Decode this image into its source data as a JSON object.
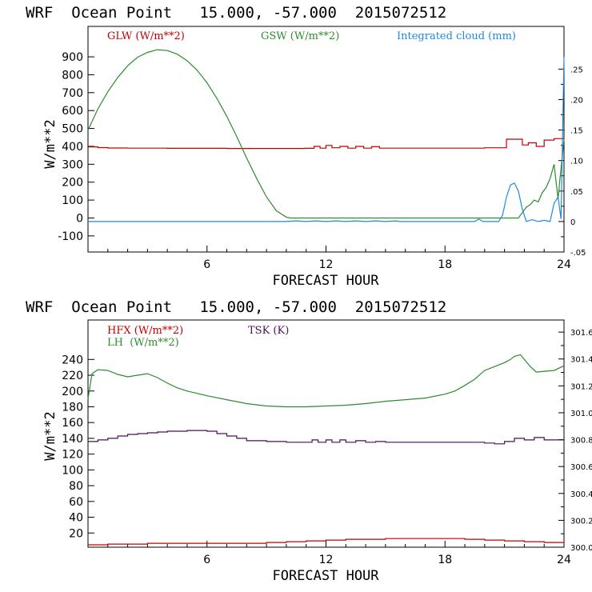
{
  "chart_data": [
    {
      "type": "line",
      "title": "WRF  Ocean Point   15.000, -57.000  2015072512",
      "xlabel": "FORECAST HOUR",
      "ylabel": "W/m**2",
      "xlim": [
        0,
        24
      ],
      "ylim": [
        -190,
        1070
      ],
      "xticks": [
        6,
        12,
        18,
        24
      ],
      "yticks": [
        -100,
        0,
        100,
        200,
        300,
        400,
        500,
        600,
        700,
        800,
        900
      ],
      "y2lim": [
        -0.05,
        0.32
      ],
      "y2ticks": [
        -0.05,
        0,
        0.05,
        0.1,
        0.15,
        0.2,
        0.25
      ],
      "y2ticklabels": [
        "-.05",
        "0",
        ".05",
        ".10",
        ".15",
        ".20",
        ".25"
      ],
      "series": [
        {
          "name": "GLW (W/m**2)",
          "color": "#c00000",
          "axis": "left",
          "step": true,
          "x": [
            0,
            0.5,
            1,
            2,
            3,
            4,
            5,
            6,
            7,
            8,
            9,
            10,
            10.9,
            11.4,
            11.7,
            12,
            12.3,
            12.7,
            13.1,
            13.5,
            13.9,
            14.3,
            14.7,
            15,
            16,
            17,
            18,
            19,
            20,
            21,
            21.1,
            21.6,
            21.9,
            22.2,
            22.6,
            23,
            23.5,
            24
          ],
          "y": [
            397,
            393,
            391,
            390,
            390,
            389,
            389,
            389,
            388,
            388,
            388,
            388,
            389,
            400,
            390,
            405,
            392,
            400,
            390,
            400,
            390,
            398,
            390,
            390,
            390,
            390,
            390,
            390,
            392,
            392,
            440,
            440,
            408,
            420,
            400,
            435,
            443,
            443
          ]
        },
        {
          "name": "GSW (W/m**2)",
          "color": "#2e8b2e",
          "axis": "left",
          "x": [
            0,
            0.5,
            1,
            1.5,
            2,
            2.5,
            3,
            3.5,
            4,
            4.5,
            5,
            5.5,
            6,
            6.5,
            7,
            7.5,
            8,
            8.5,
            9,
            9.5,
            10,
            10.2,
            10.5,
            11,
            12,
            14,
            16,
            18,
            20,
            21.7,
            21.9,
            22.1,
            22.3,
            22.5,
            22.7,
            22.9,
            23.1,
            23.3,
            23.5,
            23.7,
            23.8,
            24
          ],
          "y": [
            490,
            610,
            705,
            785,
            850,
            898,
            925,
            940,
            935,
            915,
            878,
            825,
            755,
            668,
            568,
            455,
            335,
            222,
            118,
            40,
            5,
            0,
            0,
            0,
            0,
            0,
            0,
            0,
            0,
            0,
            30,
            60,
            75,
            100,
            90,
            140,
            170,
            220,
            300,
            105,
            220,
            440
          ]
        },
        {
          "name": "Integrated cloud (mm)",
          "color": "#1f88e0",
          "axis": "right",
          "x": [
            0,
            10,
            10.5,
            11,
            11.5,
            12,
            12.5,
            13,
            13.5,
            14,
            14.5,
            15,
            15.5,
            15.8,
            16,
            19.5,
            19.7,
            19.9,
            20.1,
            20.5,
            20.7,
            20.9,
            21.1,
            21.3,
            21.5,
            21.7,
            21.9,
            22.1,
            22.4,
            22.7,
            23,
            23.3,
            23.5,
            23.7,
            23.85,
            24
          ],
          "y": [
            0,
            0,
            0.001,
            0,
            0.001,
            0,
            0.001,
            0,
            0.001,
            0,
            0.001,
            0,
            0.001,
            0,
            0,
            0,
            0.004,
            0.0,
            0.0,
            0.0,
            0.0,
            0.01,
            0.04,
            0.06,
            0.063,
            0.05,
            0.02,
            0.0,
            0.003,
            0.0,
            0.002,
            0.0,
            0.03,
            0.04,
            0.004,
            0.27
          ]
        }
      ],
      "legend": [
        "GLW (W/m**2)",
        "GSW (W/m**2)",
        "Integrated cloud (mm)"
      ]
    },
    {
      "type": "line",
      "title": "WRF  Ocean Point   15.000, -57.000  2015072512",
      "xlabel": "FORECAST HOUR",
      "ylabel": "W/m**2",
      "xlim": [
        0,
        24
      ],
      "ylim": [
        2,
        290
      ],
      "xticks": [
        6,
        12,
        18,
        24
      ],
      "yticks": [
        20,
        40,
        60,
        80,
        100,
        120,
        140,
        160,
        180,
        200,
        220,
        240
      ],
      "y2lim": [
        300.0,
        301.69
      ],
      "y2ticks": [
        300.0,
        300.2,
        300.4,
        300.6,
        300.8,
        301.0,
        301.2,
        301.4,
        301.6
      ],
      "y2ticklabels": [
        "300.0",
        "300.2",
        "300.4",
        "300.6",
        "300.8",
        "301.0",
        "301.2",
        "301.4",
        "301.6"
      ],
      "series": [
        {
          "name": "HFX (W/m**2)",
          "color": "#c00000",
          "axis": "left",
          "step": true,
          "x": [
            0,
            1,
            2,
            3,
            4,
            5,
            6,
            7,
            8,
            9,
            10,
            11,
            12,
            13,
            14,
            15,
            16,
            17,
            18,
            19,
            20,
            21,
            22,
            23,
            24
          ],
          "y": [
            5,
            6,
            6,
            7,
            7,
            7,
            7,
            7,
            7,
            8,
            9,
            10,
            11,
            12,
            12,
            13,
            13,
            13,
            13,
            12,
            11,
            10,
            9,
            8,
            6
          ]
        },
        {
          "name": "LH (W/m**2)",
          "color": "#2e8b2e",
          "axis": "left",
          "x": [
            0,
            0.2,
            0.5,
            1,
            1.5,
            2,
            2.5,
            3,
            3.5,
            4,
            4.5,
            5,
            5.5,
            6,
            7,
            8,
            9,
            10,
            11,
            12,
            13,
            14,
            15,
            16,
            17,
            18,
            18.5,
            19,
            19.5,
            20,
            20.5,
            21,
            21.3,
            21.5,
            21.8,
            22,
            22.3,
            22.6,
            23,
            23.5,
            24
          ],
          "y": [
            190,
            222,
            227,
            226,
            221,
            218,
            220,
            222,
            217,
            210,
            204,
            200,
            197,
            194,
            189,
            184,
            181,
            180,
            180,
            181,
            182,
            184,
            187,
            189,
            191,
            196,
            200,
            207,
            215,
            226,
            231,
            236,
            240,
            244,
            246,
            240,
            231,
            224,
            225,
            226,
            232
          ]
        },
        {
          "name": "TSK (K)",
          "color": "#4b0f5a",
          "axis": "left",
          "step": true,
          "x": [
            0,
            0.5,
            1,
            1.5,
            2,
            2.5,
            3,
            3.5,
            4,
            4.5,
            5,
            5.5,
            6,
            6.5,
            7,
            7.5,
            8,
            9,
            10,
            11,
            11.3,
            11.6,
            12,
            12.3,
            12.7,
            13,
            13.5,
            14,
            14.5,
            15,
            16,
            17,
            18,
            19,
            20,
            20.5,
            21,
            21.5,
            22,
            22.5,
            23,
            24
          ],
          "y": [
            136,
            138,
            140,
            143,
            145,
            146,
            147,
            148,
            149,
            149,
            150,
            150,
            149,
            146,
            143,
            140,
            137,
            136,
            135,
            135,
            138,
            135,
            138,
            135,
            138,
            135,
            137,
            135,
            136,
            135,
            135,
            135,
            135,
            135,
            134,
            133,
            136,
            140,
            138,
            141,
            138,
            140
          ]
        }
      ],
      "legend": [
        "HFX (W/m**2)",
        "LH  (W/m**2)",
        "TSK (K)"
      ]
    }
  ]
}
